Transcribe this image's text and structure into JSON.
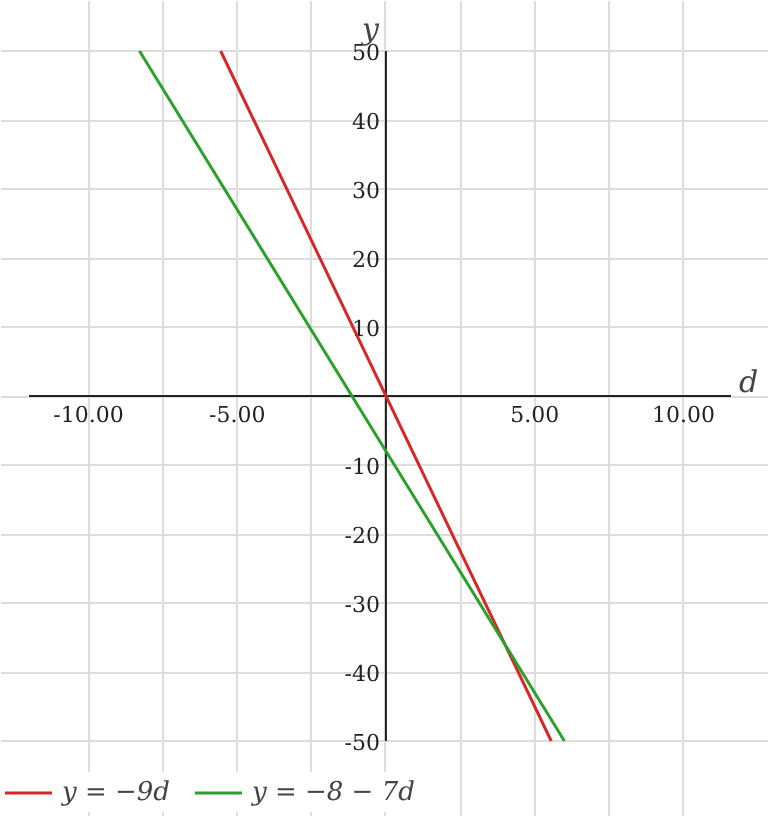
{
  "chart_data": {
    "type": "line",
    "xlabel": "d",
    "ylabel": "y",
    "xlim": [
      -12,
      11.6
    ],
    "ylim": [
      -50,
      50
    ],
    "xticks": [
      {
        "value": -10,
        "label": "-10.00"
      },
      {
        "value": -7.5,
        "label": null
      },
      {
        "value": -5,
        "label": "-5.00"
      },
      {
        "value": -2.5,
        "label": null
      },
      {
        "value": 0,
        "label": null
      },
      {
        "value": 2.5,
        "label": null
      },
      {
        "value": 5,
        "label": "5.00"
      },
      {
        "value": 7.5,
        "label": null
      },
      {
        "value": 10,
        "label": "10.00"
      }
    ],
    "yticks": [
      -50,
      -40,
      -30,
      -20,
      -10,
      {
        "value": 0,
        "label": null
      },
      10,
      20,
      30,
      40,
      50
    ],
    "grid": true,
    "legend": "bottom left",
    "marker": "none",
    "line_style": "solid",
    "series": [
      {
        "name": "y = −9d",
        "color": "#d62728",
        "x": [
          -5.556,
          5.556
        ],
        "values": [
          50,
          -50
        ]
      },
      {
        "name": "y = −8 − 7d",
        "color": "#2ca02c",
        "x": [
          -8.286,
          6
        ],
        "values": [
          50,
          -50
        ]
      }
    ]
  }
}
